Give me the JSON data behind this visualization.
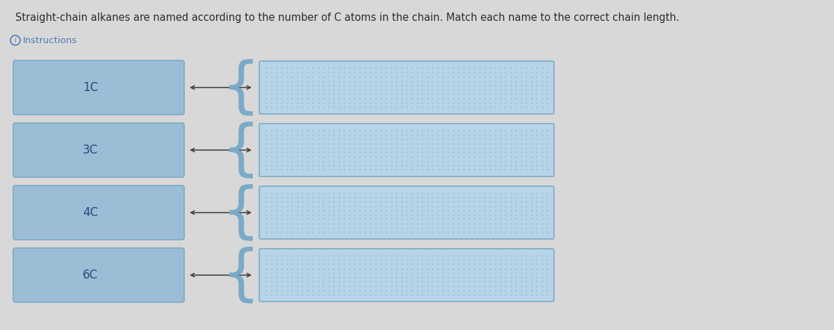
{
  "title": "Straight-chain alkanes are named according to the number of C atoms in the chain. Match each name to the correct chain length.",
  "title_color": "#2c2c2c",
  "title_fontsize": 10.5,
  "instructions_text": "Instructions",
  "instructions_color": "#4a7ab5",
  "instructions_fontsize": 9.5,
  "background_color": "#d8d8d8",
  "labels": [
    "1C",
    "3C",
    "4C",
    "6C"
  ],
  "left_box_fill": "#9bbdd6",
  "left_box_edge": "#7aaac8",
  "right_box_fill": "#b8d4e8",
  "right_box_edge": "#7aaac8",
  "label_color": "#2c4a7a",
  "label_fontsize": 12,
  "arrow_color": "#444444",
  "dot_color": "#a0bcd0"
}
